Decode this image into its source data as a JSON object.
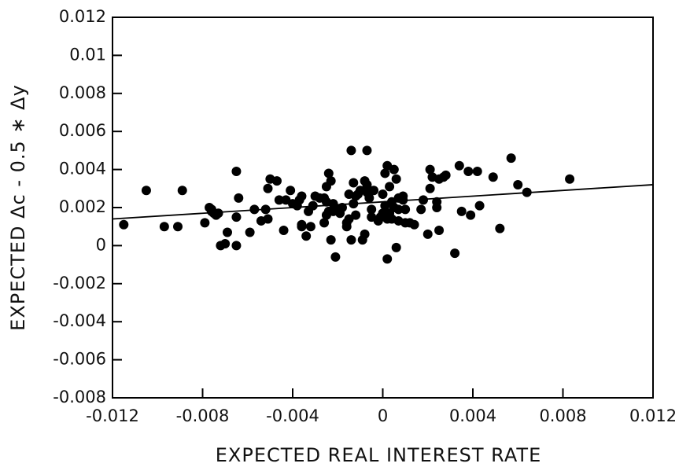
{
  "chart_data": {
    "type": "scatter",
    "xlabel": "EXPECTED REAL INTEREST RATE",
    "ylabel": "EXPECTED Δc - 0.5 ∗ Δy",
    "xlim": [
      -0.012,
      0.012
    ],
    "xticks": [
      -0.012,
      -0.008,
      -0.004,
      0,
      0.004,
      0.008,
      0.012
    ],
    "ylim": [
      -0.008,
      0.012
    ],
    "yticks": [
      -0.008,
      -0.006,
      -0.004,
      -0.002,
      0,
      0.002,
      0.004,
      0.006,
      0.008,
      0.01,
      0.012
    ],
    "color": "#000000",
    "x": [
      -0.0115,
      -0.0105,
      -0.0097,
      -0.0091,
      -0.0089,
      -0.0079,
      -0.0077,
      -0.0076,
      -0.0076,
      -0.0075,
      -0.0074,
      -0.0073,
      -0.0072,
      -0.007,
      -0.0069,
      -0.0065,
      -0.0065,
      -0.0065,
      -0.0064,
      -0.0059,
      -0.0057,
      -0.0054,
      -0.0052,
      -0.0051,
      -0.005,
      -0.0051,
      -0.0047,
      -0.0044,
      -0.0046,
      -0.0043,
      -0.0041,
      -0.004,
      -0.0038,
      -0.0037,
      -0.0036,
      -0.0036,
      -0.0034,
      -0.0036,
      -0.0033,
      -0.0032,
      -0.0031,
      -0.003,
      -0.0028,
      -0.0026,
      -0.0026,
      -0.0025,
      -0.0025,
      -0.0024,
      -0.0025,
      -0.0024,
      -0.0023,
      -0.0022,
      -0.0021,
      -0.0023,
      -0.0022,
      -0.002,
      -0.0019,
      -0.0018,
      -0.0016,
      -0.0016,
      -0.0015,
      -0.0015,
      -0.0014,
      -0.0014,
      -0.0013,
      -0.0013,
      -0.0012,
      -0.0012,
      -0.0011,
      -0.001,
      -0.0009,
      -0.0008,
      -0.0007,
      -0.0008,
      -0.0007,
      -0.0007,
      -0.0006,
      -0.0005,
      -0.0005,
      -0.0004,
      -0.0002,
      -0.0001,
      0,
      0,
      0.0001,
      0.0001,
      0.0002,
      0.0002,
      0.0002,
      0.0003,
      0.0003,
      0.0004,
      0.0004,
      0.0005,
      0.0005,
      0.0006,
      0.0006,
      0.0007,
      0.0007,
      0.0007,
      0.0009,
      0.0009,
      0.001,
      0.001,
      0.0012,
      0.0014,
      0.0017,
      0.0018,
      0.002,
      0.0021,
      0.0021,
      0.0022,
      0.0024,
      0.0024,
      0.0025,
      0.0025,
      0.0027,
      0.0028,
      0.0032,
      0.0034,
      0.0035,
      0.0038,
      0.0039,
      0.0042,
      0.0043,
      0.0049,
      0.0052,
      0.0057,
      0.006,
      0.0064,
      0.0083
    ],
    "y": [
      0.0011,
      0.0029,
      0.001,
      0.001,
      0.0029,
      0.0012,
      0.002,
      0.0018,
      0.0019,
      0.0017,
      0.0016,
      0.0017,
      0,
      0.0001,
      0.0007,
      0.0039,
      0.0015,
      0,
      0.0025,
      0.0007,
      0.0019,
      0.0013,
      0.0019,
      0.0014,
      0.0035,
      0.003,
      0.0034,
      0.0008,
      0.0024,
      0.0024,
      0.0029,
      0.0022,
      0.0021,
      0.0024,
      0.0011,
      0.001,
      0.0005,
      0.0026,
      0.0018,
      0.001,
      0.0021,
      0.0026,
      0.0025,
      0.0025,
      0.0012,
      0.0016,
      0.0031,
      0.0018,
      0.0023,
      0.0038,
      0.0003,
      0.0018,
      -0.0006,
      0.0034,
      0.0022,
      0.0019,
      0.0017,
      0.002,
      0.001,
      0.0012,
      0.0014,
      0.0027,
      0.0003,
      0.005,
      0.0022,
      0.0033,
      0.0016,
      0.0026,
      0.0027,
      0.0029,
      0.0003,
      0.0006,
      0.0032,
      0.0034,
      0.005,
      0.0028,
      0.0025,
      0.0015,
      0.0019,
      0.0029,
      0.0013,
      0.0015,
      0.0027,
      0.0017,
      0.0021,
      0.0038,
      -0.0007,
      0.0014,
      0.0042,
      0.0031,
      0.0017,
      0.0014,
      0.0023,
      0.002,
      0.004,
      0.0035,
      -0.0001,
      0.0019,
      0.0013,
      0.0025,
      0.0026,
      0.0024,
      0.0019,
      0.0012,
      0.0012,
      0.0011,
      0.0019,
      0.0024,
      0.0006,
      0.003,
      0.004,
      0.0036,
      0.002,
      0.0023,
      0.0008,
      0.0035,
      0.0036,
      0.0037,
      -0.0004,
      0.0042,
      0.0018,
      0.0039,
      0.0016,
      0.0039,
      0.0021,
      0.0036,
      0.0009,
      0.0046,
      0.0032,
      0.0028,
      0.0035
    ],
    "trend_line": {
      "x": [
        -0.012,
        0.012
      ],
      "y": [
        0.0014,
        0.0032
      ]
    }
  }
}
